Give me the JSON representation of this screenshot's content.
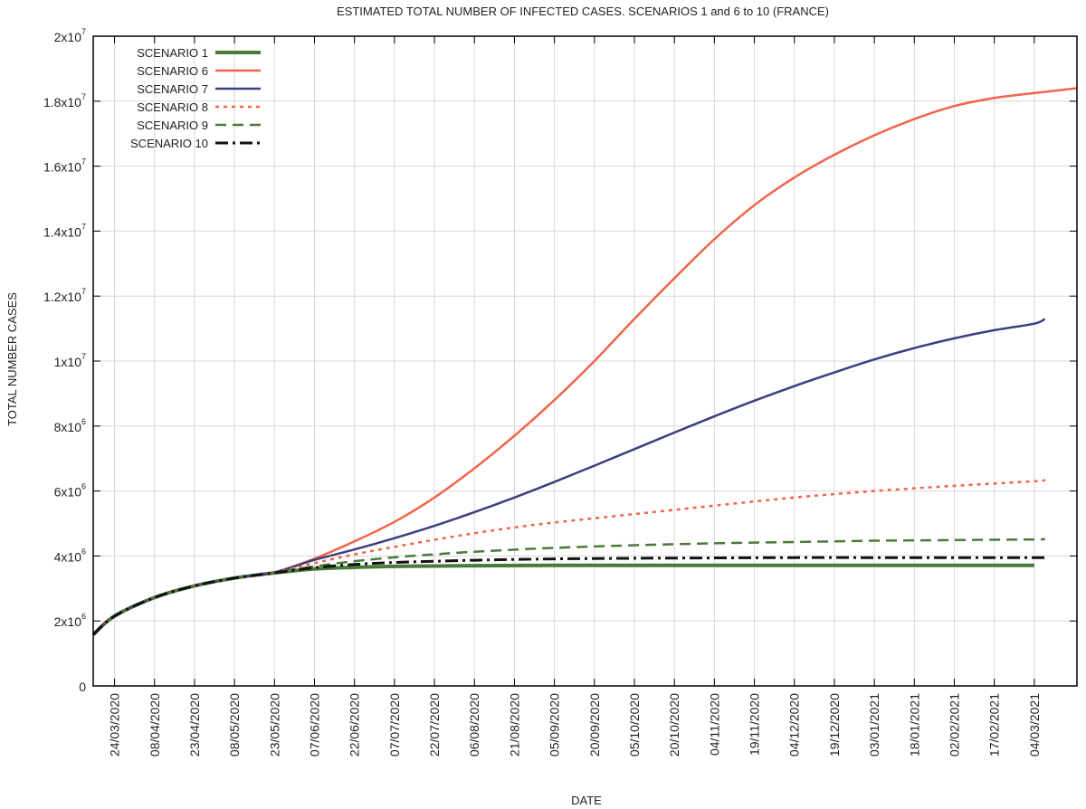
{
  "chart_data": {
    "type": "line",
    "title": "ESTIMATED TOTAL NUMBER OF INFECTED CASES.  SCENARIOS 1 and 6 to 10 (FRANCE)",
    "xlabel": "DATE",
    "ylabel": "TOTAL NUMBER CASES",
    "xlim": [
      "2020-03-16",
      "2021-03-20"
    ],
    "ylim": [
      0,
      20000000
    ],
    "x_ticks": [
      "24/03/2020",
      "08/04/2020",
      "23/04/2020",
      "08/05/2020",
      "23/05/2020",
      "07/06/2020",
      "22/06/2020",
      "07/07/2020",
      "22/07/2020",
      "06/08/2020",
      "21/08/2020",
      "05/09/2020",
      "20/09/2020",
      "05/10/2020",
      "20/10/2020",
      "04/11/2020",
      "19/11/2020",
      "04/12/2020",
      "19/12/2020",
      "03/01/2021",
      "18/01/2021",
      "02/02/2021",
      "17/02/2021",
      "04/03/2021"
    ],
    "y_ticks": [
      {
        "value": 0,
        "base": "0",
        "exp": ""
      },
      {
        "value": 2000000,
        "base": "2x10",
        "exp": "6"
      },
      {
        "value": 4000000,
        "base": "4x10",
        "exp": "6"
      },
      {
        "value": 6000000,
        "base": "6x10",
        "exp": "6"
      },
      {
        "value": 8000000,
        "base": "8x10",
        "exp": "6"
      },
      {
        "value": 10000000,
        "base": "1x10",
        "exp": "7"
      },
      {
        "value": 12000000,
        "base": "1.2x10",
        "exp": "7"
      },
      {
        "value": 14000000,
        "base": "1.4x10",
        "exp": "7"
      },
      {
        "value": 16000000,
        "base": "1.6x10",
        "exp": "7"
      },
      {
        "value": 18000000,
        "base": "1.8x10",
        "exp": "7"
      },
      {
        "value": 20000000,
        "base": "2x10",
        "exp": "7"
      }
    ],
    "grid": true,
    "legend": "top-left",
    "series": [
      {
        "name": "SCENARIO 1",
        "color": "#4a7a3a",
        "dash": "solid",
        "width": 4,
        "x": [
          "2020-03-16",
          "2020-03-24",
          "2020-04-08",
          "2020-04-23",
          "2020-05-08",
          "2020-05-23",
          "2020-06-07",
          "2020-06-22",
          "2020-07-07",
          "2020-08-06",
          "2020-09-05",
          "2020-10-05",
          "2020-11-04",
          "2020-12-04",
          "2021-01-03",
          "2021-02-02",
          "2021-03-04"
        ],
        "y": [
          1580000,
          2150000,
          2720000,
          3080000,
          3320000,
          3480000,
          3600000,
          3650000,
          3680000,
          3700000,
          3710000,
          3710000,
          3710000,
          3710000,
          3710000,
          3710000,
          3710000
        ]
      },
      {
        "name": "SCENARIO 6",
        "color": "#f2644a",
        "dash": "solid",
        "width": 2.5,
        "x": [
          "2020-03-16",
          "2020-03-24",
          "2020-04-08",
          "2020-04-23",
          "2020-05-08",
          "2020-05-23",
          "2020-06-07",
          "2020-06-22",
          "2020-07-07",
          "2020-07-22",
          "2020-08-06",
          "2020-08-21",
          "2020-09-05",
          "2020-09-20",
          "2020-10-05",
          "2020-10-20",
          "2020-11-04",
          "2020-11-19",
          "2020-12-04",
          "2020-12-19",
          "2021-01-03",
          "2021-01-18",
          "2021-02-02",
          "2021-02-17",
          "2021-03-04",
          "2021-03-20"
        ],
        "y": [
          1580000,
          2150000,
          2720000,
          3080000,
          3320000,
          3500000,
          3920000,
          4450000,
          5050000,
          5800000,
          6700000,
          7700000,
          8800000,
          10000000,
          11300000,
          12550000,
          13750000,
          14800000,
          15650000,
          16350000,
          16950000,
          17450000,
          17850000,
          18100000,
          18250000,
          18400000
        ]
      },
      {
        "name": "SCENARIO 7",
        "color": "#3c3f7e",
        "dash": "solid",
        "width": 2.5,
        "x": [
          "2020-03-16",
          "2020-03-24",
          "2020-04-08",
          "2020-04-23",
          "2020-05-08",
          "2020-05-23",
          "2020-06-07",
          "2020-06-22",
          "2020-07-07",
          "2020-07-22",
          "2020-08-06",
          "2020-08-21",
          "2020-09-05",
          "2020-09-20",
          "2020-10-05",
          "2020-10-20",
          "2020-11-04",
          "2020-11-19",
          "2020-12-04",
          "2020-12-19",
          "2021-01-03",
          "2021-01-18",
          "2021-02-02",
          "2021-02-17",
          "2021-03-04",
          "2021-03-08"
        ],
        "y": [
          1580000,
          2150000,
          2720000,
          3080000,
          3320000,
          3500000,
          3880000,
          4200000,
          4550000,
          4930000,
          5350000,
          5800000,
          6280000,
          6780000,
          7290000,
          7800000,
          8300000,
          8780000,
          9230000,
          9650000,
          10050000,
          10400000,
          10700000,
          10950000,
          11150000,
          11300000
        ]
      },
      {
        "name": "SCENARIO 8",
        "color": "#f2644a",
        "dash": "dotted",
        "width": 2.5,
        "x": [
          "2020-03-16",
          "2020-03-24",
          "2020-04-08",
          "2020-04-23",
          "2020-05-08",
          "2020-05-23",
          "2020-06-07",
          "2020-06-22",
          "2020-07-07",
          "2020-07-22",
          "2020-08-06",
          "2020-08-21",
          "2020-09-05",
          "2020-10-05",
          "2020-11-04",
          "2020-12-04",
          "2021-01-03",
          "2021-02-02",
          "2021-03-04",
          "2021-03-08"
        ],
        "y": [
          1580000,
          2150000,
          2720000,
          3080000,
          3320000,
          3500000,
          3780000,
          4050000,
          4280000,
          4500000,
          4700000,
          4880000,
          5030000,
          5290000,
          5550000,
          5800000,
          6000000,
          6160000,
          6300000,
          6340000
        ]
      },
      {
        "name": "SCENARIO 9",
        "color": "#4a7a3a",
        "dash": "dashed",
        "width": 2.5,
        "x": [
          "2020-03-16",
          "2020-03-24",
          "2020-04-08",
          "2020-04-23",
          "2020-05-08",
          "2020-05-23",
          "2020-06-07",
          "2020-06-22",
          "2020-07-07",
          "2020-07-22",
          "2020-08-06",
          "2020-09-05",
          "2020-10-05",
          "2020-11-04",
          "2020-12-04",
          "2021-01-03",
          "2021-02-02",
          "2021-03-04",
          "2021-03-08"
        ],
        "y": [
          1580000,
          2150000,
          2720000,
          3080000,
          3320000,
          3490000,
          3680000,
          3840000,
          3960000,
          4050000,
          4130000,
          4250000,
          4330000,
          4390000,
          4430000,
          4470000,
          4490000,
          4510000,
          4520000
        ]
      },
      {
        "name": "SCENARIO 10",
        "color": "#111111",
        "dash": "dashdot",
        "width": 3,
        "x": [
          "2020-03-16",
          "2020-03-24",
          "2020-04-08",
          "2020-04-23",
          "2020-05-08",
          "2020-05-23",
          "2020-06-07",
          "2020-06-22",
          "2020-07-07",
          "2020-08-06",
          "2020-09-05",
          "2020-10-05",
          "2020-11-04",
          "2020-12-04",
          "2021-01-03",
          "2021-02-02",
          "2021-03-04",
          "2021-03-08"
        ],
        "y": [
          1580000,
          2150000,
          2720000,
          3080000,
          3320000,
          3480000,
          3640000,
          3740000,
          3800000,
          3870000,
          3910000,
          3930000,
          3940000,
          3950000,
          3950000,
          3950000,
          3950000,
          3950000
        ]
      }
    ]
  }
}
